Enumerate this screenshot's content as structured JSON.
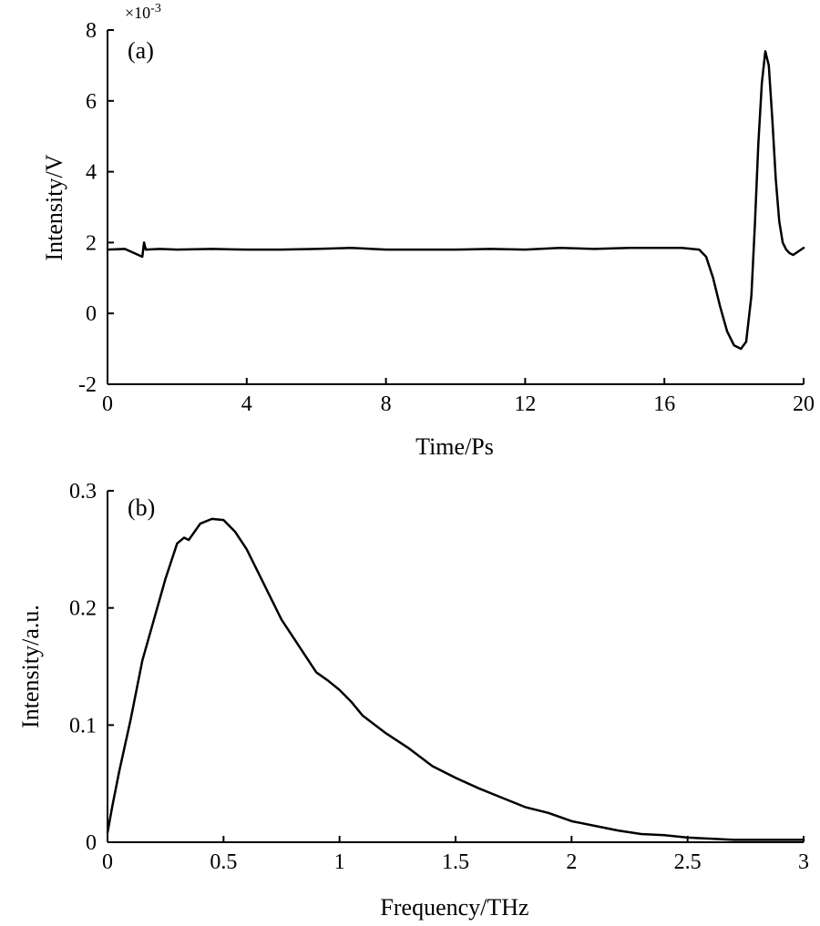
{
  "chart_data": [
    {
      "type": "line",
      "panel_label": "(a)",
      "xlabel": "Time/Ps",
      "ylabel": "Intensity/V",
      "y_multiplier": "×10-3",
      "xlim": [
        0,
        20
      ],
      "ylim": [
        -2,
        8
      ],
      "xticks": [
        "0",
        "4",
        "8",
        "12",
        "16",
        "20"
      ],
      "yticks": [
        "-2",
        "0",
        "2",
        "4",
        "6",
        "8"
      ],
      "grid": false,
      "series": [
        {
          "x": [
            0,
            0.5,
            1.0,
            1.05,
            1.1,
            1.5,
            2,
            3,
            4,
            5,
            6,
            7,
            8,
            9,
            10,
            11,
            12,
            13,
            14,
            15,
            16,
            16.5,
            16.8,
            17.0,
            17.2,
            17.4,
            17.6,
            17.8,
            18.0,
            18.2,
            18.35,
            18.5,
            18.6,
            18.7,
            18.8,
            18.9,
            19.0,
            19.1,
            19.2,
            19.3,
            19.4,
            19.5,
            19.6,
            19.7,
            19.85,
            20.0
          ],
          "y": [
            1.8,
            1.82,
            1.6,
            2.0,
            1.8,
            1.82,
            1.8,
            1.82,
            1.8,
            1.8,
            1.82,
            1.85,
            1.8,
            1.8,
            1.8,
            1.82,
            1.8,
            1.85,
            1.82,
            1.85,
            1.85,
            1.85,
            1.82,
            1.8,
            1.6,
            1.0,
            0.2,
            -0.5,
            -0.9,
            -1.0,
            -0.8,
            0.5,
            2.5,
            4.8,
            6.5,
            7.4,
            7.0,
            5.5,
            3.8,
            2.6,
            2.0,
            1.8,
            1.7,
            1.65,
            1.75,
            1.85
          ]
        }
      ]
    },
    {
      "type": "line",
      "panel_label": "(b)",
      "xlabel": "Frequency/THz",
      "ylabel": "Intensity/a.u.",
      "xlim": [
        0,
        3
      ],
      "ylim": [
        0,
        0.3
      ],
      "xticks": [
        "0",
        "0.5",
        "1",
        "1.5",
        "2",
        "2.5",
        "3"
      ],
      "yticks": [
        "0",
        "0.1",
        "0.2",
        "0.3"
      ],
      "grid": false,
      "series": [
        {
          "x": [
            0,
            0.02,
            0.05,
            0.1,
            0.15,
            0.2,
            0.25,
            0.3,
            0.33,
            0.35,
            0.4,
            0.45,
            0.5,
            0.55,
            0.6,
            0.65,
            0.7,
            0.75,
            0.8,
            0.85,
            0.9,
            0.95,
            1.0,
            1.05,
            1.1,
            1.2,
            1.3,
            1.4,
            1.5,
            1.6,
            1.7,
            1.8,
            1.9,
            2.0,
            2.1,
            2.2,
            2.3,
            2.4,
            2.5,
            2.6,
            2.7,
            2.8,
            2.9,
            3.0
          ],
          "y": [
            0.008,
            0.03,
            0.06,
            0.105,
            0.155,
            0.19,
            0.225,
            0.255,
            0.26,
            0.258,
            0.272,
            0.276,
            0.275,
            0.265,
            0.25,
            0.23,
            0.21,
            0.19,
            0.175,
            0.16,
            0.145,
            0.138,
            0.13,
            0.12,
            0.108,
            0.093,
            0.08,
            0.065,
            0.055,
            0.046,
            0.038,
            0.03,
            0.025,
            0.018,
            0.014,
            0.01,
            0.007,
            0.006,
            0.004,
            0.003,
            0.002,
            0.002,
            0.002,
            0.002
          ]
        }
      ]
    }
  ]
}
